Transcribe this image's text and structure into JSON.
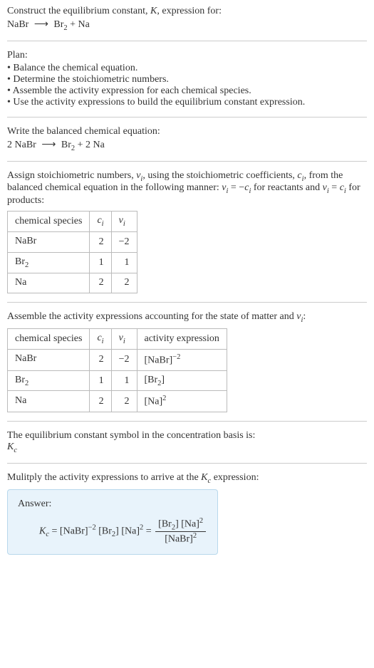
{
  "intro": {
    "line1": "Construct the equilibrium constant, ",
    "K": "K",
    "line1_end": ", expression for:",
    "reaction_lhs": "NaBr",
    "arrow": "⟶",
    "reaction_rhs_1": "Br",
    "reaction_rhs_1_sub": "2",
    "reaction_rhs_2": " + Na"
  },
  "plan": {
    "title": "Plan:",
    "items": [
      "Balance the chemical equation.",
      "Determine the stoichiometric numbers.",
      "Assemble the activity expression for each chemical species.",
      "Use the activity expressions to build the equilibrium constant expression."
    ]
  },
  "balanced": {
    "title": "Write the balanced chemical equation:",
    "lhs": "2 NaBr",
    "arrow": "⟶",
    "rhs_1": "Br",
    "rhs_1_sub": "2",
    "rhs_2": " + 2 Na"
  },
  "stoich_text": {
    "p1": "Assign stoichiometric numbers, ",
    "nu_i": "ν",
    "nu_i_sub": "i",
    "p2": ", using the stoichiometric coefficients, ",
    "c_i": "c",
    "c_i_sub": "i",
    "p3": ", from the balanced chemical equation in the following manner: ",
    "eq1_lhs": "ν",
    "eq1_lhs_sub": "i",
    "eq1_mid": " = −",
    "eq1_rhs": "c",
    "eq1_rhs_sub": "i",
    "p4": " for reactants and ",
    "eq2_lhs": "ν",
    "eq2_lhs_sub": "i",
    "eq2_mid": " = ",
    "eq2_rhs": "c",
    "eq2_rhs_sub": "i",
    "p5": " for products:"
  },
  "table1": {
    "headers": {
      "species": "chemical species",
      "c": "c",
      "c_sub": "i",
      "nu": "ν",
      "nu_sub": "i"
    },
    "rows": [
      {
        "species_main": "NaBr",
        "species_sub": "",
        "c": "2",
        "nu": "−2"
      },
      {
        "species_main": "Br",
        "species_sub": "2",
        "c": "1",
        "nu": "1"
      },
      {
        "species_main": "Na",
        "species_sub": "",
        "c": "2",
        "nu": "2"
      }
    ]
  },
  "activity_text": {
    "p1": "Assemble the activity expressions accounting for the state of matter and ",
    "nu": "ν",
    "nu_sub": "i",
    "p2": ":"
  },
  "table2": {
    "headers": {
      "species": "chemical species",
      "c": "c",
      "c_sub": "i",
      "nu": "ν",
      "nu_sub": "i",
      "activity": "activity expression"
    },
    "rows": [
      {
        "species_main": "NaBr",
        "species_sub": "",
        "c": "2",
        "nu": "−2",
        "act_main": "[NaBr]",
        "act_sub": "",
        "act_sup": "−2"
      },
      {
        "species_main": "Br",
        "species_sub": "2",
        "c": "1",
        "nu": "1",
        "act_main": "[Br",
        "act_sub": "2",
        "act_main2": "]",
        "act_sup": ""
      },
      {
        "species_main": "Na",
        "species_sub": "",
        "c": "2",
        "nu": "2",
        "act_main": "[Na]",
        "act_sub": "",
        "act_sup": "2"
      }
    ]
  },
  "basis": {
    "line": "The equilibrium constant symbol in the concentration basis is:",
    "sym": "K",
    "sym_sub": "c"
  },
  "multiply": {
    "p1": "Mulitply the activity expressions to arrive at the ",
    "K": "K",
    "K_sub": "c",
    "p2": " expression:"
  },
  "answer": {
    "label": "Answer:",
    "Kc": "K",
    "Kc_sub": "c",
    "equals": " = ",
    "t1": "[NaBr]",
    "t1_sup": "−2",
    "sp": " ",
    "t2a": "[Br",
    "t2_sub": "2",
    "t2b": "]",
    "t3": "[Na]",
    "t3_sup": "2",
    "eq2": " = ",
    "num_a": "[Br",
    "num_sub": "2",
    "num_b": "] [Na]",
    "num_sup": "2",
    "den": "[NaBr]",
    "den_sup": "2"
  },
  "style": {
    "body_width": 525,
    "font_size_base": 14,
    "divider_color": "#cccccc",
    "table_border_color": "#bbbbbb",
    "answer_bg": "#e8f3fb",
    "answer_border": "#b8d8ec",
    "text_color": "#333333"
  }
}
